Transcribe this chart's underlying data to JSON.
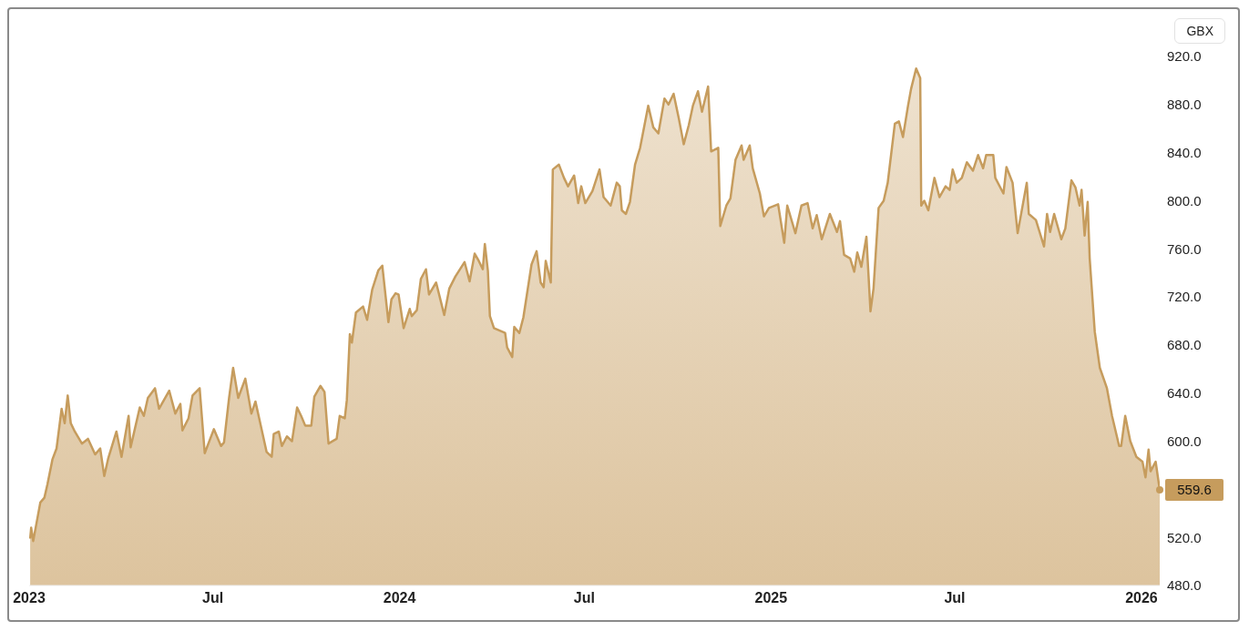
{
  "chart_data": {
    "type": "area",
    "xlim": [
      "2023-01-01",
      "2026-01-19"
    ],
    "xticks": [
      {
        "value": "2023-01-01",
        "label": "2023"
      },
      {
        "value": "2023-07-01",
        "label": "Jul"
      },
      {
        "value": "2024-01-01",
        "label": "2024"
      },
      {
        "value": "2024-07-01",
        "label": "Jul"
      },
      {
        "value": "2025-01-01",
        "label": "2025"
      },
      {
        "value": "2025-07-01",
        "label": "Jul"
      },
      {
        "value": "2026-01-01",
        "label": "2026"
      }
    ],
    "ylim": [
      480,
      920
    ],
    "yticks": [
      {
        "value": 480,
        "label": "480.0"
      },
      {
        "value": 520,
        "label": "520.0"
      },
      {
        "value": 600,
        "label": "600.0"
      },
      {
        "value": 640,
        "label": "640.0"
      },
      {
        "value": 680,
        "label": "680.0"
      },
      {
        "value": 720,
        "label": "720.0"
      },
      {
        "value": 760,
        "label": "760.0"
      },
      {
        "value": 800,
        "label": "800.0"
      },
      {
        "value": 840,
        "label": "840.0"
      },
      {
        "value": 880,
        "label": "880.0"
      },
      {
        "value": 920,
        "label": "920.0"
      }
    ],
    "annotations": [
      "GBX",
      {
        "text": "559.6",
        "x": "2026-01-19",
        "y": 559.6
      }
    ],
    "series": [
      {
        "color": "#c69c5d",
        "x": [
          "2023-01-02",
          "2023-01-03",
          "2023-01-05",
          "2023-01-12",
          "2023-01-16",
          "2023-01-19",
          "2023-01-24",
          "2023-01-28",
          "2023-02-02",
          "2023-02-05",
          "2023-02-08",
          "2023-02-11",
          "2023-02-15",
          "2023-02-22",
          "2023-02-28",
          "2023-03-07",
          "2023-03-12",
          "2023-03-16",
          "2023-03-20",
          "2023-03-28",
          "2023-04-02",
          "2023-04-09",
          "2023-04-11",
          "2023-04-20",
          "2023-04-24",
          "2023-04-28",
          "2023-05-05",
          "2023-05-09",
          "2023-05-19",
          "2023-05-25",
          "2023-05-30",
          "2023-06-01",
          "2023-06-07",
          "2023-06-11",
          "2023-06-18",
          "2023-06-23",
          "2023-07-02",
          "2023-07-09",
          "2023-07-12",
          "2023-07-17",
          "2023-07-21",
          "2023-07-26",
          "2023-08-02",
          "2023-08-08",
          "2023-08-12",
          "2023-08-23",
          "2023-08-28",
          "2023-08-30",
          "2023-09-04",
          "2023-09-07",
          "2023-09-12",
          "2023-09-17",
          "2023-09-22",
          "2023-09-26",
          "2023-09-30",
          "2023-10-06",
          "2023-10-09",
          "2023-10-15",
          "2023-10-19",
          "2023-10-23",
          "2023-10-31",
          "2023-11-03",
          "2023-11-08",
          "2023-11-10",
          "2023-11-13",
          "2023-11-15",
          "2023-11-19",
          "2023-11-26",
          "2023-11-30",
          "2023-12-05",
          "2023-12-11",
          "2023-12-15",
          "2023-12-21",
          "2023-12-24",
          "2023-12-28",
          "2023-12-31",
          "2024-01-05",
          "2024-01-11",
          "2024-01-13",
          "2024-01-18",
          "2024-01-22",
          "2024-01-27",
          "2024-01-30",
          "2024-02-06",
          "2024-02-14",
          "2024-02-19",
          "2024-02-25",
          "2024-03-05",
          "2024-03-10",
          "2024-03-15",
          "2024-03-19",
          "2024-03-23",
          "2024-03-25",
          "2024-03-28",
          "2024-03-30",
          "2024-04-03",
          "2024-04-14",
          "2024-04-16",
          "2024-04-21",
          "2024-04-23",
          "2024-04-28",
          "2024-05-02",
          "2024-05-10",
          "2024-05-15",
          "2024-05-19",
          "2024-05-22",
          "2024-05-24",
          "2024-05-29",
          "2024-05-31",
          "2024-06-06",
          "2024-06-11",
          "2024-06-15",
          "2024-06-21",
          "2024-06-25",
          "2024-06-28",
          "2024-07-02",
          "2024-07-09",
          "2024-07-16",
          "2024-07-20",
          "2024-07-27",
          "2024-08-02",
          "2024-08-05",
          "2024-08-07",
          "2024-08-11",
          "2024-08-15",
          "2024-08-20",
          "2024-08-25",
          "2024-09-02",
          "2024-09-07",
          "2024-09-12",
          "2024-09-18",
          "2024-09-22",
          "2024-09-27",
          "2024-10-02",
          "2024-10-07",
          "2024-10-12",
          "2024-10-16",
          "2024-10-21",
          "2024-10-25",
          "2024-10-31",
          "2024-11-03",
          "2024-11-10",
          "2024-11-12",
          "2024-11-18",
          "2024-11-22",
          "2024-11-27",
          "2024-12-03",
          "2024-12-05",
          "2024-12-11",
          "2024-12-14",
          "2024-12-21",
          "2024-12-25",
          "2024-12-30",
          "2025-01-08",
          "2025-01-14",
          "2025-01-17",
          "2025-01-25",
          "2025-01-31",
          "2025-02-06",
          "2025-02-11",
          "2025-02-15",
          "2025-02-20",
          "2025-02-28",
          "2025-03-07",
          "2025-03-10",
          "2025-03-14",
          "2025-03-20",
          "2025-03-24",
          "2025-03-27",
          "2025-03-31",
          "2025-04-05",
          "2025-04-09",
          "2025-04-12",
          "2025-04-17",
          "2025-04-22",
          "2025-04-26",
          "2025-05-03",
          "2025-05-07",
          "2025-05-11",
          "2025-05-16",
          "2025-05-19",
          "2025-05-24",
          "2025-05-28",
          "2025-05-29",
          "2025-06-01",
          "2025-06-05",
          "2025-06-11",
          "2025-06-16",
          "2025-06-22",
          "2025-06-26",
          "2025-06-29",
          "2025-07-03",
          "2025-07-08",
          "2025-07-13",
          "2025-07-19",
          "2025-07-24",
          "2025-07-29",
          "2025-08-01",
          "2025-08-08",
          "2025-08-10",
          "2025-08-18",
          "2025-08-21",
          "2025-08-27",
          "2025-09-01",
          "2025-09-10",
          "2025-09-12",
          "2025-09-19",
          "2025-09-27",
          "2025-09-30",
          "2025-10-03",
          "2025-10-07",
          "2025-10-14",
          "2025-10-18",
          "2025-10-24",
          "2025-10-28",
          "2025-11-01",
          "2025-11-03",
          "2025-11-06",
          "2025-11-09",
          "2025-11-11",
          "2025-11-16",
          "2025-11-21",
          "2025-11-28",
          "2025-12-03",
          "2025-12-10",
          "2025-12-12",
          "2025-12-16",
          "2025-12-21",
          "2025-12-27",
          "2026-01-02",
          "2026-01-05",
          "2026-01-08",
          "2026-01-10",
          "2026-01-15",
          "2026-01-19"
        ],
        "values": [
          519,
          528,
          517,
          549,
          553,
          564,
          585,
          594,
          627,
          615,
          638,
          615,
          608,
          598,
          602,
          589,
          594,
          571,
          586,
          608,
          587,
          621,
          595,
          628,
          621,
          636,
          644,
          627,
          642,
          623,
          631,
          609,
          619,
          638,
          644,
          590,
          610,
          596,
          599,
          636,
          661,
          636,
          652,
          623,
          633,
          591,
          587,
          606,
          608,
          596,
          604,
          600,
          628,
          621,
          613,
          613,
          637,
          646,
          641,
          598,
          602,
          621,
          619,
          634,
          689,
          682,
          707,
          712,
          701,
          726,
          742,
          746,
          699,
          718,
          723,
          722,
          694,
          710,
          704,
          709,
          735,
          743,
          722,
          732,
          705,
          727,
          737,
          749,
          733,
          756,
          750,
          743,
          764,
          742,
          704,
          694,
          690,
          678,
          670,
          695,
          690,
          703,
          747,
          758,
          732,
          728,
          750,
          732,
          826,
          830,
          819,
          812,
          821,
          798,
          812,
          798,
          808,
          826,
          803,
          796,
          815,
          812,
          792,
          789,
          799,
          830,
          844,
          879,
          861,
          856,
          885,
          880,
          889,
          869,
          847,
          863,
          879,
          891,
          874,
          895,
          841,
          844,
          779,
          796,
          802,
          834,
          846,
          834,
          846,
          827,
          806,
          787,
          794,
          797,
          765,
          796,
          773,
          796,
          798,
          777,
          788,
          768,
          789,
          774,
          783,
          755,
          752,
          741,
          757,
          745,
          770,
          708,
          727,
          794,
          800,
          815,
          864,
          866,
          853,
          879,
          893,
          910,
          902,
          796,
          800,
          792,
          819,
          803,
          812,
          809,
          826,
          815,
          819,
          832,
          825,
          838,
          827,
          838,
          838,
          819,
          806,
          828,
          815,
          773,
          815,
          789,
          784,
          762,
          789,
          774,
          789,
          768,
          777,
          817,
          811,
          796,
          809,
          771,
          799,
          752,
          691,
          661,
          644,
          621,
          596,
          596,
          621,
          600,
          587,
          583,
          570,
          593,
          575,
          583,
          559.6
        ]
      }
    ]
  }
}
